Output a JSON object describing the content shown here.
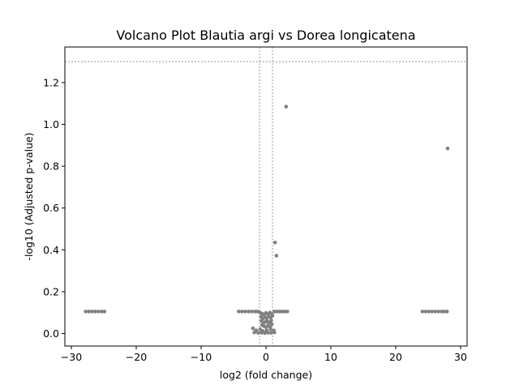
{
  "chart_data": {
    "type": "scatter",
    "title": "Volcano Plot Blautia argi vs Dorea longicatena",
    "xlabel": "log2 (fold change)",
    "ylabel": "-log10 (Adjusted p-value)",
    "xlim": [
      -31,
      31
    ],
    "ylim": [
      -0.06,
      1.37
    ],
    "x_ticks": [
      -30,
      -20,
      -10,
      0,
      10,
      20,
      30
    ],
    "x_tick_labels": [
      "−30",
      "−20",
      "−10",
      "0",
      "10",
      "20",
      "30"
    ],
    "y_ticks": [
      0.0,
      0.2,
      0.4,
      0.6,
      0.8,
      1.0,
      1.2
    ],
    "y_tick_labels": [
      "0.0",
      "0.2",
      "0.4",
      "0.6",
      "0.8",
      "1.0",
      "1.2"
    ],
    "grid": false,
    "point_color": "#808080",
    "threshold_color": "#808080",
    "threshold_lines": {
      "x": [
        -1,
        1
      ],
      "y": [
        1.3
      ]
    },
    "series": [
      {
        "points": [
          [
            3.1,
            1.085
          ],
          [
            28.0,
            0.885
          ],
          [
            1.4,
            0.435
          ],
          [
            1.6,
            0.372
          ],
          [
            27.9,
            0.105
          ],
          [
            -27.8,
            0.105
          ],
          [
            -27.3,
            0.105
          ],
          [
            -26.8,
            0.105
          ],
          [
            -26.3,
            0.105
          ],
          [
            -25.8,
            0.105
          ],
          [
            -25.3,
            0.105
          ],
          [
            -24.9,
            0.105
          ],
          [
            24.1,
            0.105
          ],
          [
            24.6,
            0.105
          ],
          [
            25.1,
            0.105
          ],
          [
            25.6,
            0.105
          ],
          [
            26.1,
            0.105
          ],
          [
            26.6,
            0.105
          ],
          [
            27.1,
            0.105
          ],
          [
            27.5,
            0.105
          ],
          [
            -4.2,
            0.105
          ],
          [
            -3.7,
            0.105
          ],
          [
            -3.2,
            0.105
          ],
          [
            -2.7,
            0.105
          ],
          [
            -2.2,
            0.105
          ],
          [
            -1.7,
            0.105
          ],
          [
            -1.3,
            0.105
          ],
          [
            1.3,
            0.105
          ],
          [
            1.7,
            0.105
          ],
          [
            2.1,
            0.105
          ],
          [
            2.5,
            0.105
          ],
          [
            2.9,
            0.105
          ],
          [
            3.3,
            0.105
          ],
          [
            -0.9,
            0.1
          ],
          [
            -0.6,
            0.095
          ],
          [
            -0.3,
            0.09
          ],
          [
            0.0,
            0.098
          ],
          [
            0.3,
            0.092
          ],
          [
            0.6,
            0.1
          ],
          [
            0.9,
            0.094
          ],
          [
            -0.8,
            0.08
          ],
          [
            -0.5,
            0.07
          ],
          [
            -0.2,
            0.078
          ],
          [
            0.1,
            0.072
          ],
          [
            0.4,
            0.082
          ],
          [
            0.7,
            0.076
          ],
          [
            1.0,
            0.085
          ],
          [
            -0.7,
            0.06
          ],
          [
            -0.4,
            0.05
          ],
          [
            -0.1,
            0.055
          ],
          [
            0.2,
            0.058
          ],
          [
            0.5,
            0.052
          ],
          [
            0.8,
            0.062
          ],
          [
            -0.6,
            0.04
          ],
          [
            -0.3,
            0.035
          ],
          [
            0.0,
            0.03
          ],
          [
            0.3,
            0.038
          ],
          [
            0.6,
            0.032
          ],
          [
            0.9,
            0.045
          ],
          [
            -2.0,
            0.025
          ],
          [
            -1.5,
            0.015
          ],
          [
            -0.9,
            0.02
          ],
          [
            -0.5,
            0.012
          ],
          [
            0.1,
            0.015
          ],
          [
            0.7,
            0.02
          ],
          [
            1.2,
            0.015
          ],
          [
            -1.8,
            0.005
          ],
          [
            -1.2,
            0.003
          ],
          [
            -0.7,
            0.004
          ],
          [
            -0.2,
            0.002
          ],
          [
            0.3,
            0.004
          ],
          [
            0.8,
            0.003
          ],
          [
            1.3,
            0.005
          ]
        ]
      }
    ]
  }
}
